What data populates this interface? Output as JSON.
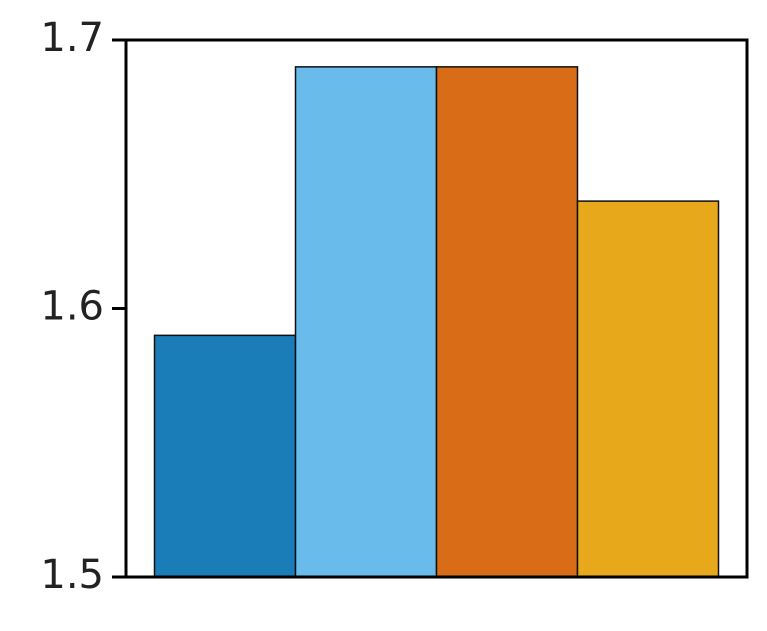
{
  "chart_data": {
    "type": "bar",
    "categories": [
      null,
      null,
      null,
      null
    ],
    "values": [
      1.59,
      1.69,
      1.69,
      1.64
    ],
    "colors": [
      "#1a7db8",
      "#68bbea",
      "#d86c17",
      "#e8a81c"
    ],
    "ylim": [
      1.5,
      1.7
    ],
    "yticks": [
      1.5,
      1.6,
      1.7
    ],
    "grid": false
  }
}
